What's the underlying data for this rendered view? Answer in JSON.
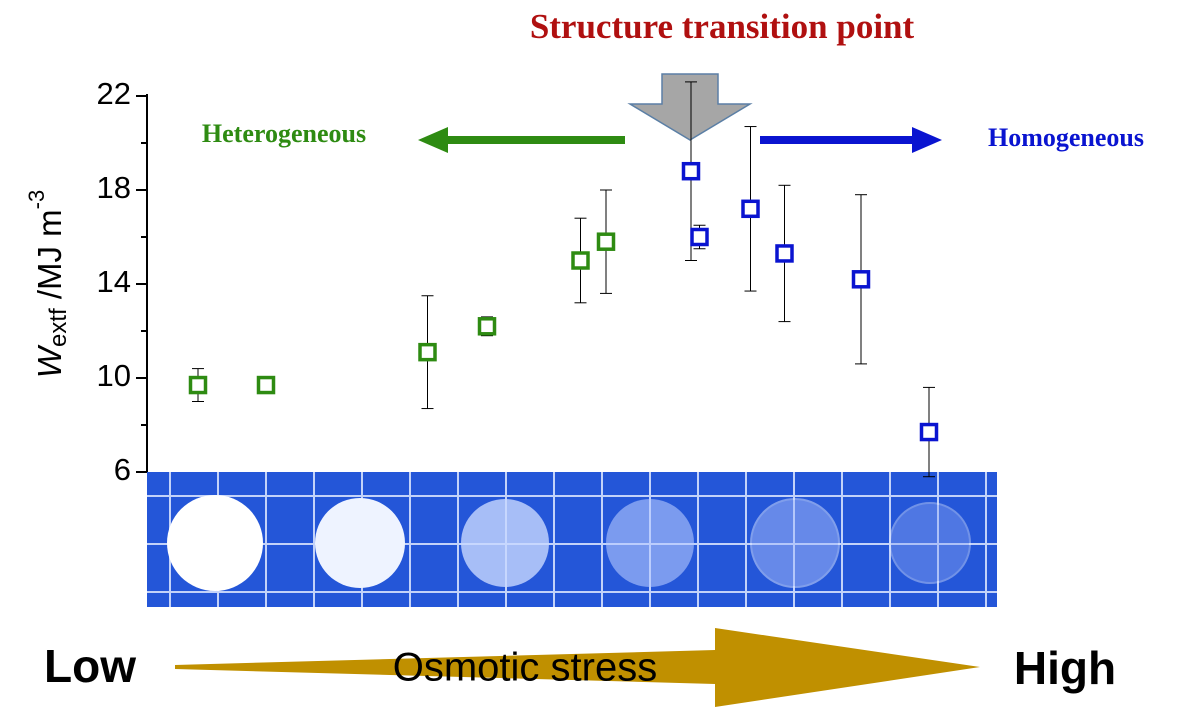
{
  "chart_data": {
    "type": "scatter",
    "title": "Structure transition point",
    "annotations": {
      "left": "Heterogeneous",
      "right": "Homogeneous",
      "low": "Low",
      "high": "High",
      "arrow": "Osmotic stress"
    },
    "y_label": {
      "main": "W",
      "sub": "extf",
      "unit": " /MJ m",
      "sup": "-3"
    },
    "xlim": [
      0,
      100
    ],
    "ylim": [
      6,
      22
    ],
    "yticks": [
      6,
      10,
      14,
      18,
      22
    ],
    "yminor": [
      8,
      12,
      16,
      20
    ],
    "series": [
      {
        "color": "#2e8b12",
        "x": [
          6,
          14,
          33,
          40,
          51,
          54
        ],
        "values": [
          9.7,
          9.7,
          11.1,
          12.2,
          15.0,
          15.8
        ],
        "errors": [
          0.7,
          0.2,
          2.4,
          0.4,
          1.8,
          2.2
        ]
      },
      {
        "color": "#0a14d0",
        "x": [
          64,
          65,
          71,
          75,
          84,
          92
        ],
        "values": [
          18.8,
          16.0,
          17.2,
          15.3,
          14.2,
          7.7
        ],
        "errors": [
          3.8,
          0.5,
          3.5,
          2.9,
          3.6,
          1.9
        ]
      }
    ]
  }
}
